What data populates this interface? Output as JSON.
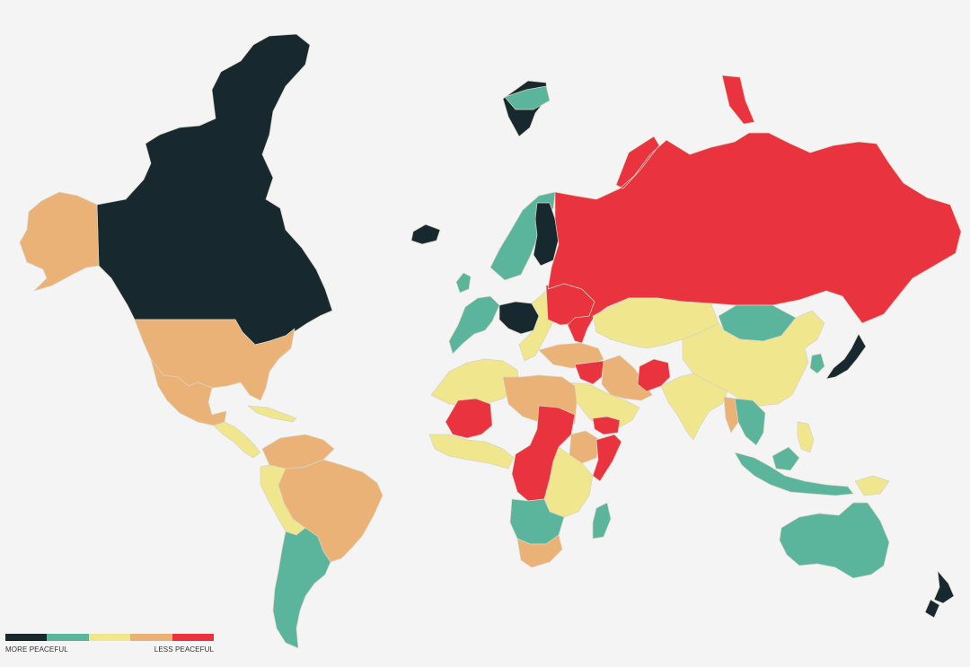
{
  "legend": {
    "colors": [
      "#17292f",
      "#5ab59c",
      "#efe68e",
      "#ebb277",
      "#e9343f"
    ],
    "left_label": "MORE PEACEFUL",
    "right_label": "LESS PEACEFUL"
  },
  "map": {
    "background": "#f4f4f4",
    "border_color": "#d9d4c0",
    "regions": [
      {
        "name": "canada",
        "level": 0
      },
      {
        "name": "alaska",
        "level": 3
      },
      {
        "name": "usa",
        "level": 3
      },
      {
        "name": "mexico",
        "level": 3
      },
      {
        "name": "central-america",
        "level": 2
      },
      {
        "name": "caribbean",
        "level": 2
      },
      {
        "name": "greenland",
        "level": 0
      },
      {
        "name": "iceland",
        "level": 0
      },
      {
        "name": "colombia-venezuela",
        "level": 3
      },
      {
        "name": "brazil",
        "level": 3
      },
      {
        "name": "peru-bolivia",
        "level": 2
      },
      {
        "name": "chile-argentina",
        "level": 1
      },
      {
        "name": "svalbard",
        "level": 1
      },
      {
        "name": "scandinavia",
        "level": 1
      },
      {
        "name": "finland",
        "level": 0
      },
      {
        "name": "western-europe",
        "level": 1
      },
      {
        "name": "central-europe",
        "level": 0
      },
      {
        "name": "eastern-europe",
        "level": 2
      },
      {
        "name": "ukraine",
        "level": 4
      },
      {
        "name": "russia",
        "level": 4
      },
      {
        "name": "kazakhstan-central-asia",
        "level": 2
      },
      {
        "name": "mongolia",
        "level": 1
      },
      {
        "name": "china",
        "level": 2
      },
      {
        "name": "japan",
        "level": 0
      },
      {
        "name": "korea",
        "level": 1
      },
      {
        "name": "turkey-caucasus",
        "level": 3
      },
      {
        "name": "syria-iraq",
        "level": 4
      },
      {
        "name": "iran",
        "level": 3
      },
      {
        "name": "afghanistan",
        "level": 4
      },
      {
        "name": "arabian-peninsula",
        "level": 2
      },
      {
        "name": "yemen",
        "level": 4
      },
      {
        "name": "india",
        "level": 2
      },
      {
        "name": "southeast-asia",
        "level": 1
      },
      {
        "name": "myanmar",
        "level": 3
      },
      {
        "name": "indonesia",
        "level": 1
      },
      {
        "name": "philippines",
        "level": 2
      },
      {
        "name": "papua",
        "level": 2
      },
      {
        "name": "north-africa",
        "level": 2
      },
      {
        "name": "libya-egypt",
        "level": 3
      },
      {
        "name": "mali",
        "level": 4
      },
      {
        "name": "sudan-car-drc",
        "level": 4
      },
      {
        "name": "west-africa",
        "level": 2
      },
      {
        "name": "ethiopia",
        "level": 3
      },
      {
        "name": "somalia",
        "level": 4
      },
      {
        "name": "east-africa",
        "level": 2
      },
      {
        "name": "southern-africa",
        "level": 1
      },
      {
        "name": "south-africa",
        "level": 3
      },
      {
        "name": "madagascar",
        "level": 1
      },
      {
        "name": "australia",
        "level": 1
      },
      {
        "name": "new-zealand",
        "level": 0
      }
    ]
  }
}
